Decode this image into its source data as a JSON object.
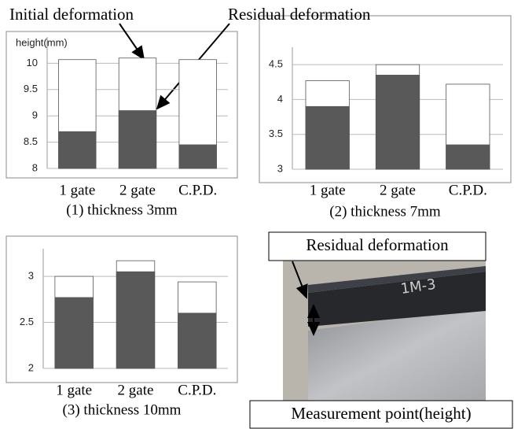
{
  "chart_data": [
    {
      "type": "bar",
      "overlay": true,
      "caption": "(1) thickness 3mm",
      "y_label": "height(mm)",
      "annotations": [
        "Initial deformation",
        "Residual deformation"
      ],
      "categories": [
        "1 gate",
        "2 gate",
        "C.P.D."
      ],
      "series": [
        {
          "color": "#ffffff",
          "values": [
            10.07,
            10.1,
            10.07
          ]
        },
        {
          "color": "#595959",
          "values": [
            8.7,
            9.1,
            8.45
          ]
        }
      ],
      "ylim": [
        8,
        10.5
      ],
      "yticks": [
        8,
        8.5,
        9,
        9.5,
        10
      ],
      "grid": true
    },
    {
      "type": "bar",
      "overlay": true,
      "caption": "(2) thickness 7mm",
      "categories": [
        "1 gate",
        "2 gate",
        "C.P.D."
      ],
      "series": [
        {
          "color": "#ffffff",
          "values": [
            4.27,
            4.5,
            4.22
          ]
        },
        {
          "color": "#595959",
          "values": [
            3.9,
            4.35,
            3.35
          ]
        }
      ],
      "ylim": [
        3,
        4.75
      ],
      "yticks": [
        3,
        3.5,
        4,
        4.5
      ],
      "grid": true
    },
    {
      "type": "bar",
      "overlay": true,
      "caption": "(3) thickness 10mm",
      "categories": [
        "1 gate",
        "2 gate",
        "C.P.D."
      ],
      "series": [
        {
          "color": "#ffffff",
          "values": [
            3.0,
            3.17,
            2.94
          ]
        },
        {
          "color": "#595959",
          "values": [
            2.77,
            3.05,
            2.6
          ]
        }
      ],
      "ylim": [
        2,
        3.3
      ],
      "yticks": [
        2,
        2.5,
        3
      ],
      "grid": true
    }
  ],
  "photo": {
    "top_label": "Residual deformation",
    "bottom_label": "Measurement point(height)"
  }
}
